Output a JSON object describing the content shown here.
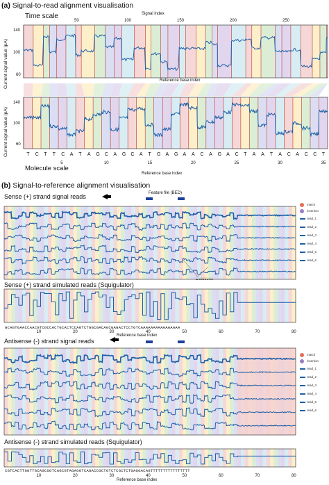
{
  "panel_a": {
    "title_letter": "(a)",
    "title": "Signal-to-read alignment visualisation",
    "time_scale_label": "Time scale",
    "signal_index_label": "Signal index",
    "signal_ticks": [
      "50",
      "100",
      "150",
      "200",
      "250"
    ],
    "ylabel_top": "Current signal value (pA)",
    "ylabel_bottom": "Current signal value (pA)",
    "yticks_top": [
      "140",
      "100",
      "60"
    ],
    "yticks_bottom": [
      "140",
      "100",
      "60"
    ],
    "ref_label_mid": "Reference base index",
    "ref_label_bottom": "Reference base index",
    "molecule_scale_label": "Molecule scale",
    "bases": [
      "T",
      "C",
      "T",
      "T",
      "C",
      "A",
      "T",
      "A",
      "G",
      "C",
      "A",
      "G",
      "C",
      "A",
      "T",
      "G",
      "A",
      "G",
      "A",
      "A",
      "C",
      "A",
      "G",
      "A",
      "C",
      "T",
      "A",
      "A",
      "T",
      "A",
      "C",
      "A",
      "C",
      "C",
      "T"
    ],
    "base_ticks": [
      "5",
      "10",
      "15",
      "20",
      "25",
      "30",
      "35"
    ]
  },
  "panel_b": {
    "title_letter": "(b)",
    "title": "Signal-to-reference alignment visualisation",
    "sense_signal_label": "Sense (+) strand signal reads",
    "feature_label": "Feature file (BED)",
    "deletions_label": "Deletions",
    "sense_sim_label": "Sense (+) strand simulated reads (Squigulator)",
    "sense_seq": "GCAGTGAACCAACGTCGCCACTGCACTCCAGTCTGGCGACAGCGAGACTCCTGTCAAAAAAAAAAAAAAAA",
    "sense_ref_label": "Reference base index",
    "ref_ticks": [
      "10",
      "20",
      "30",
      "40",
      "50",
      "60",
      "70",
      "80"
    ],
    "antisense_signal_label": "Antisense (-) strand signal reads",
    "antisense_sim_label": "Antisense (-) strand simulated reads (Squigulator)",
    "antisense_seq": "CGTCACTTGGTTGCAGCGGTCAGCGTAGAGGTCAGACCGCTGTCTCGCTCTGAGGACAGTTTTTTTTTTTTTTTT",
    "antisense_ref_label": "Reference base index",
    "legend": [
      "match",
      "insertion",
      "read_1",
      "read_2",
      "read_3",
      "read_4",
      "read_5",
      "read_6"
    ]
  },
  "colors": {
    "signal": "#1f5fa8",
    "boundary": "#c0392b",
    "feature": "#1f3f9a",
    "bands": [
      "#f3c9c9",
      "#fbe9b8",
      "#cfe8c7",
      "#cfd3ef",
      "#d8c8e8",
      "#c9e7ef"
    ]
  }
}
